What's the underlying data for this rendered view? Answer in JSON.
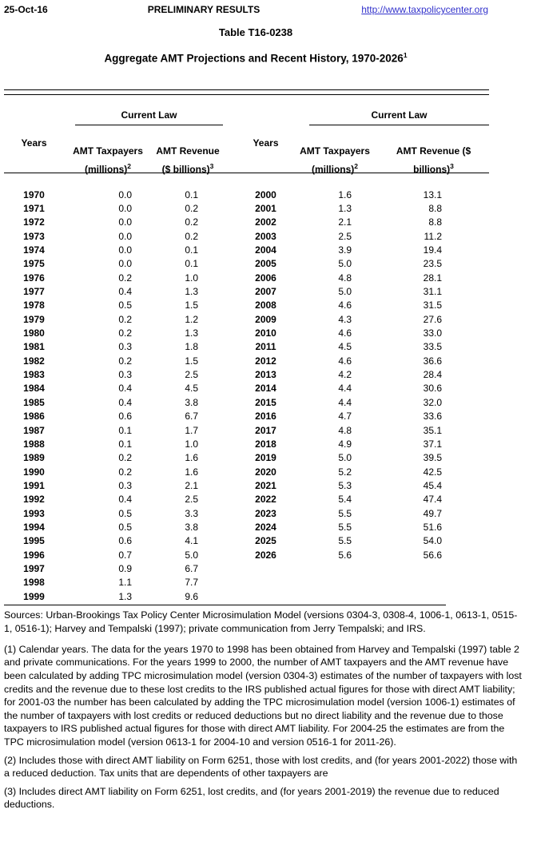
{
  "page": {
    "date": "25-Oct-16",
    "header_center": "PRELIMINARY RESULTS",
    "header_link": "http://www.taxpolicycenter.org",
    "title": "Table T16-0238",
    "subtitle": "Aggregate AMT Projections and Recent History, 1970-2026",
    "subtitle_sup": "1"
  },
  "colors": {
    "link": "#3333cc",
    "text": "#000000",
    "rule": "#000000"
  },
  "table": {
    "group_header": "Current Law",
    "years_label": "Years",
    "taxpayers_header": "AMT Taxpayers",
    "taxpayers_unit": "(millions)",
    "taxpayers_sup": "2",
    "revenue_left_line1": "AMT Revenue",
    "revenue_left_line2": "($ billions)",
    "revenue_right_line1": "AMT Revenue ($",
    "revenue_right_line2": "billions)",
    "revenue_sup": "3",
    "left_rows": [
      [
        "1970",
        "0.0",
        "0.1"
      ],
      [
        "1971",
        "0.0",
        "0.2"
      ],
      [
        "1972",
        "0.0",
        "0.2"
      ],
      [
        "1973",
        "0.0",
        "0.2"
      ],
      [
        "1974",
        "0.0",
        "0.1"
      ],
      [
        "1975",
        "0.0",
        "0.1"
      ],
      [
        "1976",
        "0.2",
        "1.0"
      ],
      [
        "1977",
        "0.4",
        "1.3"
      ],
      [
        "1978",
        "0.5",
        "1.5"
      ],
      [
        "1979",
        "0.2",
        "1.2"
      ],
      [
        "1980",
        "0.2",
        "1.3"
      ],
      [
        "1981",
        "0.3",
        "1.8"
      ],
      [
        "1982",
        "0.2",
        "1.5"
      ],
      [
        "1983",
        "0.3",
        "2.5"
      ],
      [
        "1984",
        "0.4",
        "4.5"
      ],
      [
        "1985",
        "0.4",
        "3.8"
      ],
      [
        "1986",
        "0.6",
        "6.7"
      ],
      [
        "1987",
        "0.1",
        "1.7"
      ],
      [
        "1988",
        "0.1",
        "1.0"
      ],
      [
        "1989",
        "0.2",
        "1.6"
      ],
      [
        "1990",
        "0.2",
        "1.6"
      ],
      [
        "1991",
        "0.3",
        "2.1"
      ],
      [
        "1992",
        "0.4",
        "2.5"
      ],
      [
        "1993",
        "0.5",
        "3.3"
      ],
      [
        "1994",
        "0.5",
        "3.8"
      ],
      [
        "1995",
        "0.6",
        "4.1"
      ],
      [
        "1996",
        "0.7",
        "5.0"
      ],
      [
        "1997",
        "0.9",
        "6.7"
      ],
      [
        "1998",
        "1.1",
        "7.7"
      ],
      [
        "1999",
        "1.3",
        "9.6"
      ]
    ],
    "right_rows": [
      [
        "2000",
        "1.6",
        "13.1"
      ],
      [
        "2001",
        "1.3",
        "8.8"
      ],
      [
        "2002",
        "2.1",
        "8.8"
      ],
      [
        "2003",
        "2.5",
        "11.2"
      ],
      [
        "2004",
        "3.9",
        "19.4"
      ],
      [
        "2005",
        "5.0",
        "23.5"
      ],
      [
        "2006",
        "4.8",
        "28.1"
      ],
      [
        "2007",
        "5.0",
        "31.1"
      ],
      [
        "2008",
        "4.6",
        "31.5"
      ],
      [
        "2009",
        "4.3",
        "27.6"
      ],
      [
        "2010",
        "4.6",
        "33.0"
      ],
      [
        "2011",
        "4.5",
        "33.5"
      ],
      [
        "2012",
        "4.6",
        "36.6"
      ],
      [
        "2013",
        "4.2",
        "28.4"
      ],
      [
        "2014",
        "4.4",
        "30.6"
      ],
      [
        "2015",
        "4.4",
        "32.0"
      ],
      [
        "2016",
        "4.7",
        "33.6"
      ],
      [
        "2017",
        "4.8",
        "35.1"
      ],
      [
        "2018",
        "4.9",
        "37.1"
      ],
      [
        "2019",
        "5.0",
        "39.5"
      ],
      [
        "2020",
        "5.2",
        "42.5"
      ],
      [
        "2021",
        "5.3",
        "45.4"
      ],
      [
        "2022",
        "5.4",
        "47.4"
      ],
      [
        "2023",
        "5.5",
        "49.7"
      ],
      [
        "2024",
        "5.5",
        "51.6"
      ],
      [
        "2025",
        "5.5",
        "54.0"
      ],
      [
        "2026",
        "5.6",
        "56.6"
      ]
    ]
  },
  "footnotes": {
    "sources": "Sources: Urban-Brookings Tax Policy Center Microsimulation Model (versions 0304-3, 0308-4, 1006-1, 0613-1, 0515-1, 0516-1); Harvey and Tempalski (1997); private communication from Jerry Tempalski; and IRS.",
    "fn1": "(1) Calendar years. The data for the years 1970 to 1998 has been obtained from Harvey and Tempalski (1997) table 2 and private communications. For the years 1999 to 2000, the number of AMT taxpayers and the AMT revenue have been calculated by adding TPC microsimulation model (version 0304-3) estimates of the number of taxpayers with lost credits and the revenue due to these lost credits to the IRS published actual figures for those with direct AMT liability; for 2001-03 the number has been calculated by adding the TPC microsimulation model (version 1006-1) estimates of the number of taxpayers with lost credits or reduced deductions but no direct liability and the revenue due to those taxpayers to IRS published actual figures for those with direct AMT liability. For 2004-25 the estimates are from the TPC microsimulation model (version 0613-1 for 2004-10 and version 0516-1 for 2011-26).",
    "fn2": "(2) Includes those with direct AMT liability on Form 6251, those with lost credits, and (for years 2001-2022) those with a reduced deduction. Tax units that are dependents of other taxpayers are",
    "fn3": "(3) Includes direct AMT liability on Form 6251, lost credits, and (for years 2001-2019) the revenue due to reduced deductions."
  }
}
